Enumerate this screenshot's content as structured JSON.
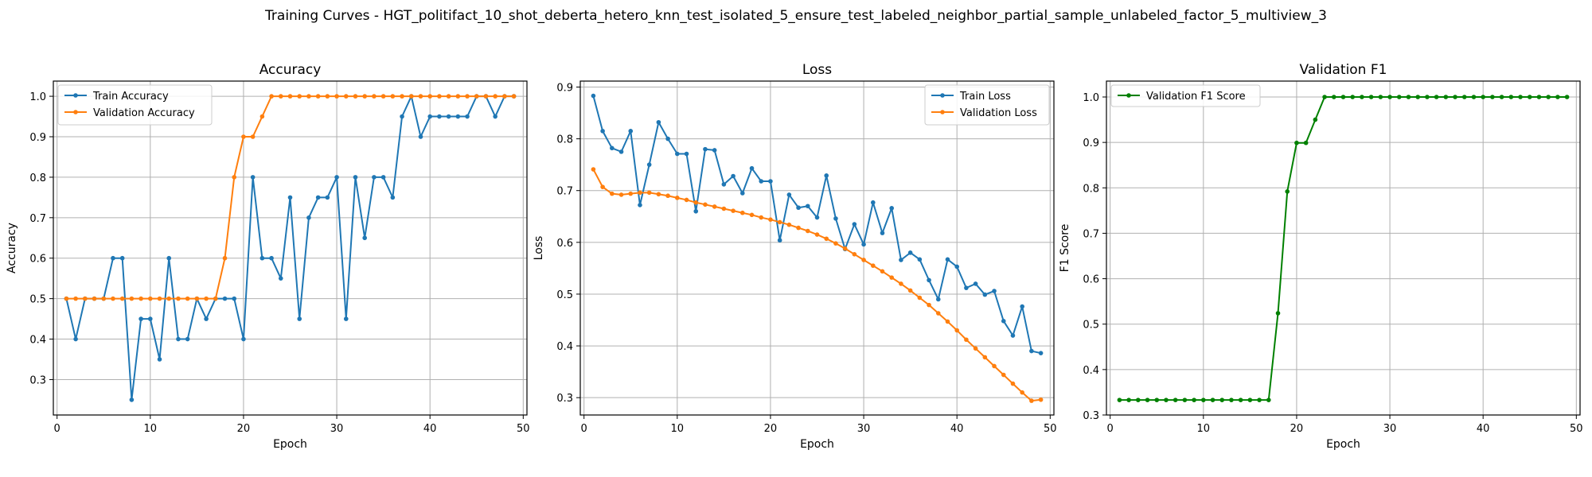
{
  "figure": {
    "suptitle": "Training Curves - HGT_politifact_10_shot_deberta_hetero_knn_test_isolated_5_ensure_test_labeled_neighbor_partial_sample_unlabeled_factor_5_multiview_3"
  },
  "colors": {
    "blue": "#1f77b4",
    "orange": "#ff7f0e",
    "green": "#008000",
    "grid": "#b0b0b0"
  },
  "chart_data": [
    {
      "type": "line",
      "title": "Accuracy",
      "xlabel": "Epoch",
      "ylabel": "Accuracy",
      "xlim": [
        -0.4,
        50.4
      ],
      "ylim": [
        0.2125,
        1.0375
      ],
      "xticks": [
        0,
        10,
        20,
        30,
        40,
        50
      ],
      "yticks": [
        0.3,
        0.4,
        0.5,
        0.6,
        0.7,
        0.8,
        0.9,
        1.0
      ],
      "grid": true,
      "legend_position": "upper-left",
      "x": [
        1,
        2,
        3,
        4,
        5,
        6,
        7,
        8,
        9,
        10,
        11,
        12,
        13,
        14,
        15,
        16,
        17,
        18,
        19,
        20,
        21,
        22,
        23,
        24,
        25,
        26,
        27,
        28,
        29,
        30,
        31,
        32,
        33,
        34,
        35,
        36,
        37,
        38,
        39,
        40,
        41,
        42,
        43,
        44,
        45,
        46,
        47,
        48,
        49
      ],
      "series": [
        {
          "name": "Train Accuracy",
          "color": "#1f77b4",
          "values": [
            0.5,
            0.4,
            0.5,
            0.5,
            0.5,
            0.6,
            0.6,
            0.25,
            0.45,
            0.45,
            0.35,
            0.6,
            0.4,
            0.4,
            0.5,
            0.45,
            0.5,
            0.5,
            0.5,
            0.4,
            0.8,
            0.6,
            0.6,
            0.55,
            0.75,
            0.45,
            0.7,
            0.75,
            0.75,
            0.8,
            0.45,
            0.8,
            0.65,
            0.8,
            0.8,
            0.75,
            0.95,
            1.0,
            0.9,
            0.95,
            0.95,
            0.95,
            0.95,
            0.95,
            1.0,
            1.0,
            0.95,
            1.0,
            1.0
          ]
        },
        {
          "name": "Validation Accuracy",
          "color": "#ff7f0e",
          "values": [
            0.5,
            0.5,
            0.5,
            0.5,
            0.5,
            0.5,
            0.5,
            0.5,
            0.5,
            0.5,
            0.5,
            0.5,
            0.5,
            0.5,
            0.5,
            0.5,
            0.5,
            0.6,
            0.8,
            0.9,
            0.9,
            0.95,
            1.0,
            1.0,
            1.0,
            1.0,
            1.0,
            1.0,
            1.0,
            1.0,
            1.0,
            1.0,
            1.0,
            1.0,
            1.0,
            1.0,
            1.0,
            1.0,
            1.0,
            1.0,
            1.0,
            1.0,
            1.0,
            1.0,
            1.0,
            1.0,
            1.0,
            1.0,
            1.0
          ]
        }
      ]
    },
    {
      "type": "line",
      "title": "Loss",
      "xlabel": "Epoch",
      "ylabel": "Loss",
      "xlim": [
        -0.4,
        50.4
      ],
      "ylim": [
        0.2665,
        0.9115
      ],
      "xticks": [
        0,
        10,
        20,
        30,
        40,
        50
      ],
      "yticks": [
        0.3,
        0.4,
        0.5,
        0.6,
        0.7,
        0.8,
        0.9
      ],
      "grid": true,
      "legend_position": "upper-right",
      "x": [
        1,
        2,
        3,
        4,
        5,
        6,
        7,
        8,
        9,
        10,
        11,
        12,
        13,
        14,
        15,
        16,
        17,
        18,
        19,
        20,
        21,
        22,
        23,
        24,
        25,
        26,
        27,
        28,
        29,
        30,
        31,
        32,
        33,
        34,
        35,
        36,
        37,
        38,
        39,
        40,
        41,
        42,
        43,
        44,
        45,
        46,
        47,
        48,
        49
      ],
      "series": [
        {
          "name": "Train Loss",
          "color": "#1f77b4",
          "values": [
            0.883,
            0.815,
            0.782,
            0.775,
            0.815,
            0.672,
            0.75,
            0.832,
            0.8,
            0.771,
            0.771,
            0.66,
            0.78,
            0.778,
            0.712,
            0.728,
            0.695,
            0.743,
            0.718,
            0.718,
            0.604,
            0.692,
            0.667,
            0.67,
            0.648,
            0.729,
            0.646,
            0.587,
            0.635,
            0.596,
            0.677,
            0.618,
            0.666,
            0.566,
            0.58,
            0.567,
            0.527,
            0.49,
            0.567,
            0.553,
            0.512,
            0.52,
            0.499,
            0.506,
            0.448,
            0.42,
            0.476,
            0.39,
            0.386
          ]
        },
        {
          "name": "Validation Loss",
          "color": "#ff7f0e",
          "values": [
            0.741,
            0.707,
            0.694,
            0.692,
            0.694,
            0.696,
            0.696,
            0.693,
            0.69,
            0.686,
            0.682,
            0.677,
            0.673,
            0.669,
            0.665,
            0.661,
            0.657,
            0.653,
            0.648,
            0.644,
            0.639,
            0.634,
            0.628,
            0.622,
            0.615,
            0.607,
            0.598,
            0.588,
            0.577,
            0.566,
            0.555,
            0.544,
            0.532,
            0.52,
            0.507,
            0.493,
            0.479,
            0.463,
            0.447,
            0.43,
            0.412,
            0.395,
            0.378,
            0.361,
            0.344,
            0.327,
            0.31,
            0.294,
            0.296
          ]
        }
      ]
    },
    {
      "type": "line",
      "title": "Validation F1",
      "xlabel": "Epoch",
      "ylabel": "F1 Score",
      "xlim": [
        -0.4,
        50.4
      ],
      "ylim": [
        0.3,
        1.035
      ],
      "xticks": [
        0,
        10,
        20,
        30,
        40,
        50
      ],
      "yticks": [
        0.3,
        0.4,
        0.5,
        0.6,
        0.7,
        0.8,
        0.9,
        1.0
      ],
      "grid": true,
      "legend_position": "upper-left",
      "x": [
        1,
        2,
        3,
        4,
        5,
        6,
        7,
        8,
        9,
        10,
        11,
        12,
        13,
        14,
        15,
        16,
        17,
        18,
        19,
        20,
        21,
        22,
        23,
        24,
        25,
        26,
        27,
        28,
        29,
        30,
        31,
        32,
        33,
        34,
        35,
        36,
        37,
        38,
        39,
        40,
        41,
        42,
        43,
        44,
        45,
        46,
        47,
        48,
        49
      ],
      "series": [
        {
          "name": "Validation F1 Score",
          "color": "#008000",
          "values": [
            0.333,
            0.333,
            0.333,
            0.333,
            0.333,
            0.333,
            0.333,
            0.333,
            0.333,
            0.333,
            0.333,
            0.333,
            0.333,
            0.333,
            0.333,
            0.333,
            0.333,
            0.524,
            0.792,
            0.899,
            0.899,
            0.95,
            1.0,
            1.0,
            1.0,
            1.0,
            1.0,
            1.0,
            1.0,
            1.0,
            1.0,
            1.0,
            1.0,
            1.0,
            1.0,
            1.0,
            1.0,
            1.0,
            1.0,
            1.0,
            1.0,
            1.0,
            1.0,
            1.0,
            1.0,
            1.0,
            1.0,
            1.0,
            1.0
          ]
        }
      ]
    }
  ]
}
